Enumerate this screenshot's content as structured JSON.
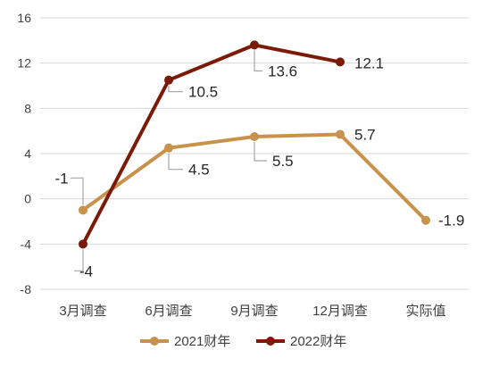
{
  "chart_data": {
    "type": "line",
    "categories": [
      "3月调查",
      "6月调查",
      "9月调查",
      "12月调查",
      "实际值"
    ],
    "ylim": [
      -8,
      16
    ],
    "yticks": [
      -8,
      -4,
      0,
      4,
      8,
      12,
      16
    ],
    "grid": true,
    "legend": "bottom",
    "series": [
      {
        "name": "2021财年",
        "color": "#c9924a",
        "values": [
          -1,
          4.5,
          5.5,
          5.7,
          -1.9
        ],
        "labels": [
          "-1",
          "4.5",
          "5.5",
          "5.7",
          "-1.9"
        ]
      },
      {
        "name": "2022财年",
        "color": "#7b1a06",
        "values": [
          -4,
          10.5,
          13.6,
          12.1,
          null
        ],
        "labels": [
          "-4",
          "10.5",
          "13.6",
          "12.1",
          ""
        ]
      }
    ]
  }
}
